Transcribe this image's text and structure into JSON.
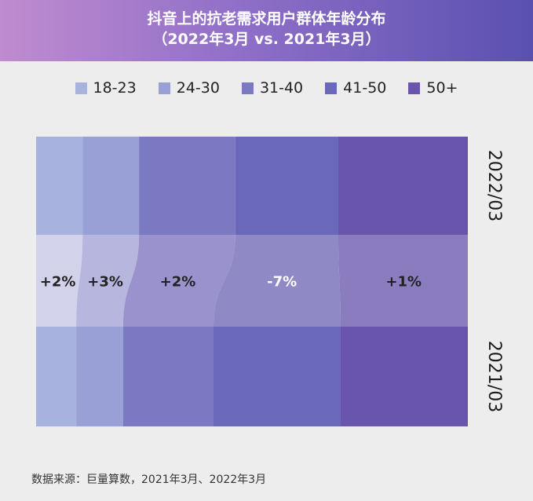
{
  "title_line1": "抖音上的抗老需求用户群体年龄分布",
  "title_line2": "（2022年3月 vs. 2021年3月）",
  "source": "数据来源：巨量算数，2021年3月、2022年3月",
  "colors": {
    "top": [
      "#a7b2de",
      "#98a0d5",
      "#7a79c2",
      "#6a68b8",
      "#6955ab"
    ],
    "middle": [
      "#d2d2ea",
      "#b6b6de",
      "#9a92cc",
      "#8f89c6",
      "#8a7cbf"
    ],
    "bottom": [
      "#a7b2de",
      "#98a0d5",
      "#7a79c2",
      "#6a68b8",
      "#6955ab"
    ]
  },
  "chart_data": {
    "type": "bar",
    "orientation": "horizontal-stacked-100",
    "categories": [
      "2022/03",
      "2021/03"
    ],
    "series": [
      {
        "name": "18-23",
        "values": [
          14,
          12
        ],
        "change_label": "+2%"
      },
      {
        "name": "24-30",
        "values": [
          17,
          14
        ],
        "change_label": "+3%"
      },
      {
        "name": "31-40",
        "values": [
          29,
          27
        ],
        "change_label": "+2%"
      },
      {
        "name": "41-50",
        "values": [
          31,
          38
        ],
        "change_label": "-7%"
      },
      {
        "name": "50+",
        "values": [
          39,
          38
        ],
        "change_label": "+1%"
      }
    ],
    "legend": "top"
  }
}
